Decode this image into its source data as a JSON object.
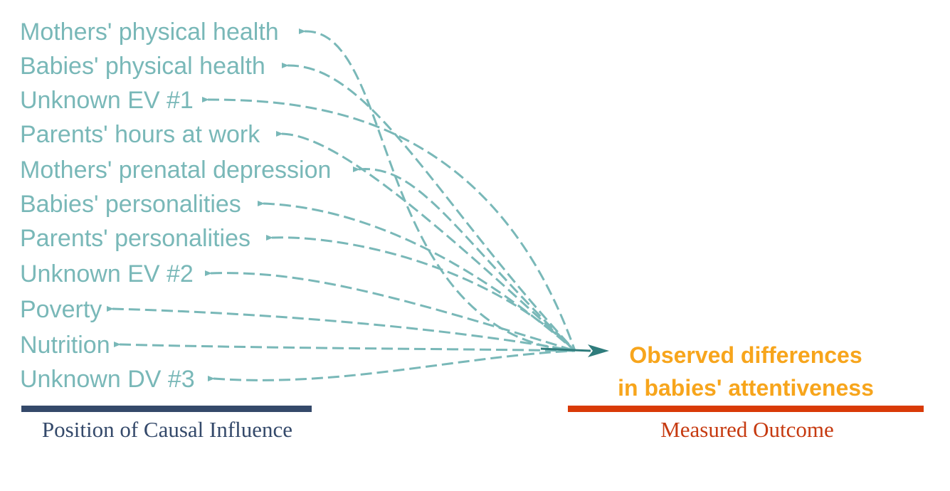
{
  "colors": {
    "influence": "#79b8b8",
    "arrow": "#2f7c7c",
    "outcome": "#f7a51c",
    "left_bar": "#34496a",
    "right_bar": "#d93a07",
    "left_caption": "#34496a",
    "right_caption": "#c63a10"
  },
  "influences": [
    {
      "label": "Mothers' physical health"
    },
    {
      "label": "Babies' physical health"
    },
    {
      "label": "Unknown EV #1"
    },
    {
      "label": "Parents' hours at work"
    },
    {
      "label": "Mothers' prenatal depression"
    },
    {
      "label": "Babies' personalities"
    },
    {
      "label": "Parents' personalities"
    },
    {
      "label": "Unknown EV #2"
    },
    {
      "label": "Poverty"
    },
    {
      "label": "Nutrition"
    },
    {
      "label": "Unknown DV #3"
    }
  ],
  "outcome": {
    "line1": "Observed differences",
    "line2": "in babies' attentiveness"
  },
  "captions": {
    "left": "Position of Causal Influence",
    "right": "Measured Outcome"
  }
}
